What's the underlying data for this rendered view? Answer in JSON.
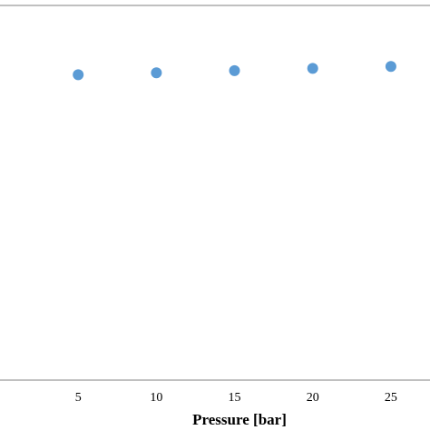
{
  "chart_data": {
    "type": "scatter",
    "title": "",
    "xlabel": "Pressure [bar]",
    "ylabel": "",
    "x": [
      5,
      10,
      15,
      20,
      25
    ],
    "series": [
      {
        "values": [
          0.815,
          0.82,
          0.826,
          0.832,
          0.837
        ],
        "color": "#5b9bd5"
      }
    ],
    "xlim": [
      0,
      27.5
    ],
    "ylim": [
      0,
      1
    ],
    "xticks": [
      "5",
      "10",
      "15",
      "20",
      "25"
    ],
    "grid": false,
    "legend": "none"
  }
}
